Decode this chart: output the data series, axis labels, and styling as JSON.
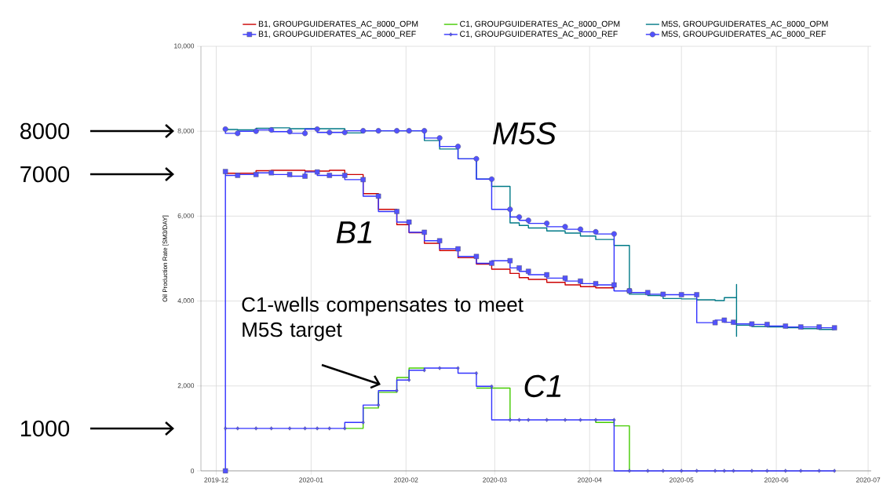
{
  "chart_data": {
    "type": "step",
    "ylabel": "Oil Production Rate [SM3/DAY]",
    "xlim": [
      "2019-11-26",
      "2020-07-02"
    ],
    "xticks": [
      "2019-12",
      "2020-01",
      "2020-02",
      "2020-03",
      "2020-04",
      "2020-05",
      "2020-06",
      "2020-07"
    ],
    "ylim": [
      0,
      10000
    ],
    "yticks": [
      0,
      {
        "value": 2000,
        "label": "2,000"
      },
      {
        "value": 4000,
        "label": "4,000"
      },
      {
        "value": 6000,
        "label": "6,000"
      },
      {
        "value": 8000,
        "label": "8,000"
      },
      {
        "value": 10000,
        "label": "10,000"
      }
    ],
    "grid": true,
    "legend": "top",
    "series": [
      {
        "name": "B1, GROUPGUIDERATES_AC_8000_OPM",
        "color": "#cc0000",
        "x": [
          "2019-12-04",
          "2019-12-08",
          "2019-12-14",
          "2019-12-19",
          "2019-12-25",
          "2019-12-30",
          "2020-01-03",
          "2020-01-07",
          "2020-01-12",
          "2020-01-18",
          "2020-01-23",
          "2020-01-29",
          "2020-02-02",
          "2020-02-07",
          "2020-02-12",
          "2020-02-18",
          "2020-02-24",
          "2020-02-29",
          "2020-03-06",
          "2020-03-09",
          "2020-03-12",
          "2020-03-18",
          "2020-03-24",
          "2020-03-29",
          "2020-04-03",
          "2020-04-09"
        ],
        "values": [
          7020,
          7010,
          7010,
          7070,
          7080,
          7080,
          7060,
          7060,
          7080,
          6980,
          6530,
          6160,
          5800,
          5610,
          5360,
          5190,
          5020,
          4870,
          4750,
          4650,
          4550,
          4510,
          4440,
          4380,
          4340,
          4310
        ]
      },
      {
        "name": "C1, GROUPGUIDERATES_AC_8000_OPM",
        "color": "#44cc00",
        "x": [
          "2020-01-12",
          "2020-01-18",
          "2020-01-23",
          "2020-01-29",
          "2020-02-02",
          "2020-02-07",
          "2020-02-12",
          "2020-02-24",
          "2020-02-29",
          "2020-03-06",
          "2020-03-06",
          "2020-03-09",
          "2020-04-03",
          "2020-04-09",
          "2020-04-14",
          "2020-04-14"
        ],
        "values": [
          1000,
          1000,
          1480,
          1850,
          2200,
          2420,
          null,
          1950,
          1950,
          1950,
          1200,
          null,
          1200,
          1140,
          1060,
          0
        ]
      },
      {
        "name": "M5S, GROUPGUIDERATES_AC_8000_OPM",
        "color": "#007a87",
        "x": [
          "2019-12-04",
          "2019-12-08",
          "2019-12-14",
          "2019-12-19",
          "2019-12-25",
          "2019-12-30",
          "2020-01-03",
          "2020-01-07",
          "2020-01-12",
          "2020-01-18",
          "2020-01-23",
          "2020-01-29",
          "2020-02-02",
          "2020-02-07",
          "2020-02-12",
          "2020-02-18",
          "2020-02-24",
          "2020-02-29",
          "2020-03-06",
          "2020-03-09",
          "2020-03-12",
          "2020-03-18",
          "2020-03-24",
          "2020-03-29",
          "2020-04-03",
          "2020-04-09",
          "2020-04-14",
          "2020-04-20",
          "2020-04-25",
          "2020-05-01",
          "2020-05-06",
          "2020-05-12",
          "2020-05-15",
          "2020-05-19",
          "2020-05-19",
          "2020-05-19",
          "2020-05-24",
          "2020-05-29",
          "2020-06-04",
          "2020-06-09",
          "2020-06-15",
          "2020-06-20"
        ],
        "values": [
          8050,
          8040,
          8030,
          8070,
          8080,
          8060,
          8060,
          8060,
          8060,
          7960,
          8010,
          8010,
          8010,
          8010,
          7780,
          7580,
          7350,
          6870,
          6700,
          5840,
          5780,
          5720,
          5650,
          5600,
          5530,
          5450,
          5310,
          4160,
          4130,
          4060,
          4050,
          4030,
          4010,
          4080,
          4390,
          3170,
          3430,
          3400,
          3390,
          3370,
          3350,
          3330
        ]
      },
      {
        "name": "B1, GROUPGUIDERATES_AC_8000_REF",
        "color": "#3333ff",
        "marker": "square",
        "x": [
          "2019-12-04",
          "2019-12-04",
          "2019-12-08",
          "2019-12-14",
          "2019-12-19",
          "2019-12-25",
          "2019-12-30",
          "2020-01-03",
          "2020-01-07",
          "2020-01-12",
          "2020-01-18",
          "2020-01-23",
          "2020-01-29",
          "2020-02-02",
          "2020-02-07",
          "2020-02-12",
          "2020-02-18",
          "2020-02-24",
          "2020-02-29",
          "2020-03-06",
          "2020-03-09",
          "2020-03-12",
          "2020-03-18",
          "2020-03-24",
          "2020-03-29",
          "2020-04-03",
          "2020-04-09",
          "2020-04-14",
          "2020-04-20",
          "2020-04-25",
          "2020-05-01",
          "2020-05-06",
          "2020-05-12",
          "2020-05-15",
          "2020-05-18",
          "2020-05-24",
          "2020-05-29",
          "2020-06-04",
          "2020-06-09",
          "2020-06-15",
          "2020-06-20"
        ],
        "values": [
          0,
          7050,
          6960,
          6980,
          7020,
          6980,
          6940,
          7040,
          6960,
          6960,
          6860,
          6470,
          6110,
          5860,
          5620,
          5420,
          5230,
          5050,
          4890,
          4950,
          4780,
          4700,
          4620,
          4540,
          4470,
          4410,
          4380,
          4240,
          4200,
          4160,
          4150,
          4150,
          3490,
          3550,
          3500,
          3460,
          3450,
          3410,
          3390,
          3390,
          3370
        ]
      },
      {
        "name": "C1, GROUPGUIDERATES_AC_8000_REF",
        "color": "#3333ff",
        "marker": "diamond",
        "x": [
          "2019-12-04",
          "2019-12-08",
          "2019-12-14",
          "2019-12-19",
          "2019-12-25",
          "2019-12-30",
          "2020-01-03",
          "2020-01-07",
          "2020-01-12",
          "2020-01-18",
          "2020-01-23",
          "2020-01-29",
          "2020-02-02",
          "2020-02-07",
          "2020-02-12",
          "2020-02-18",
          "2020-02-24",
          "2020-02-29",
          "2020-03-06",
          "2020-03-09",
          "2020-03-12",
          "2020-03-18",
          "2020-03-24",
          "2020-03-29",
          "2020-04-03",
          "2020-04-09",
          "2020-04-14",
          "2020-04-20",
          "2020-04-25",
          "2020-05-01",
          "2020-05-06",
          "2020-05-12",
          "2020-05-15",
          "2020-05-18",
          "2020-05-24",
          "2020-05-29",
          "2020-06-04",
          "2020-06-09",
          "2020-06-15",
          "2020-06-20"
        ],
        "values": [
          1000,
          1000,
          1000,
          1000,
          1000,
          1000,
          1000,
          1000,
          1000,
          1140,
          1550,
          1890,
          2140,
          2370,
          2420,
          2420,
          2300,
          1990,
          1200,
          1200,
          1200,
          1200,
          1200,
          1200,
          1200,
          1200,
          0,
          0,
          0,
          0,
          0,
          0,
          0,
          0,
          0,
          0,
          0,
          0,
          0,
          0
        ]
      },
      {
        "name": "M5S, GROUPGUIDERATES_AC_8000_REF",
        "color": "#3333ff",
        "marker": "circle",
        "x": [
          "2019-12-04",
          "2019-12-08",
          "2019-12-14",
          "2019-12-19",
          "2019-12-25",
          "2019-12-30",
          "2020-01-03",
          "2020-01-07",
          "2020-01-12",
          "2020-01-18",
          "2020-01-23",
          "2020-01-29",
          "2020-02-02",
          "2020-02-07",
          "2020-02-12",
          "2020-02-18",
          "2020-02-24",
          "2020-02-29",
          "2020-03-06",
          "2020-03-09",
          "2020-03-12",
          "2020-03-18",
          "2020-03-24",
          "2020-03-29",
          "2020-04-03",
          "2020-04-09",
          "2020-04-14"
        ],
        "values": [
          8050,
          7950,
          8000,
          8030,
          7990,
          7950,
          8050,
          7970,
          7970,
          8010,
          8010,
          8010,
          8010,
          8010,
          7840,
          7640,
          7350,
          6870,
          6160,
          5980,
          5900,
          5830,
          5750,
          5690,
          5630,
          5580,
          4240
        ]
      }
    ],
    "annotations": [
      "8000",
      "7000",
      "1000",
      "M5S",
      "B1",
      "C1",
      "C1-wells compensates to meet M5S target"
    ]
  }
}
